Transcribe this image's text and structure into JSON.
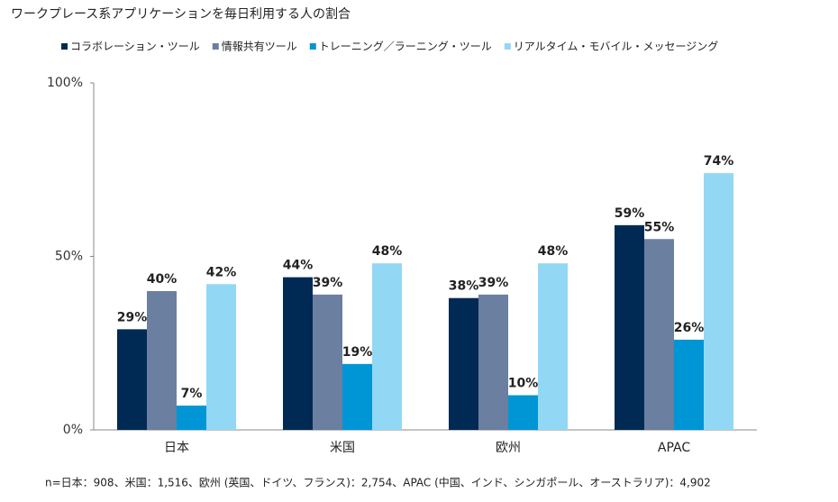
{
  "chart_data": {
    "type": "bar",
    "title": "ワークプレース系アプリケーションを毎日利用する人の割合",
    "categories": [
      "日本",
      "米国",
      "欧州",
      "APAC"
    ],
    "series": [
      {
        "name": "コラボレーション・ツール",
        "color": "#002a54",
        "values": [
          29,
          44,
          38,
          59
        ],
        "value_labels": [
          "29%",
          "44%",
          "38%",
          "59%"
        ]
      },
      {
        "name": "情報共有ツール",
        "color": "#6b7fa0",
        "values": [
          40,
          39,
          39,
          55
        ],
        "value_labels": [
          "40%",
          "39%",
          "39%",
          "55%"
        ]
      },
      {
        "name": "トレーニング／ラーニング・ツール",
        "color": "#0095d4",
        "values": [
          7,
          19,
          10,
          26
        ],
        "value_labels": [
          "7%",
          "19%",
          "10%",
          "26%"
        ]
      },
      {
        "name": "リアルタイム・モバイル・メッセージング",
        "color": "#92d8f5",
        "values": [
          42,
          48,
          48,
          74
        ],
        "value_labels": [
          "42%",
          "48%",
          "48%",
          "74%"
        ]
      }
    ],
    "ylim": [
      0,
      100
    ],
    "yticks": [
      {
        "value": 0,
        "label": "0%"
      },
      {
        "value": 50,
        "label": "50%"
      },
      {
        "value": 100,
        "label": "100%"
      }
    ],
    "legend": "top",
    "note": "n=日本：908、米国：1,516、欧州 (英国、ドイツ、フランス)：2,754、APAC (中国、インド、シンガポール、オーストラリア)：4,902"
  }
}
